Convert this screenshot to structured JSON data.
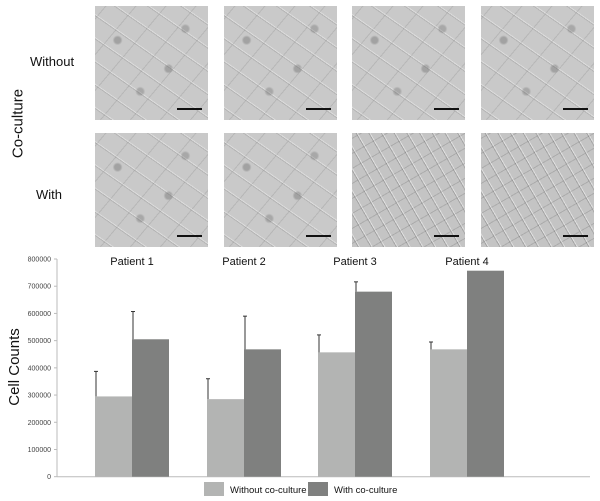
{
  "figure": {
    "group_label": "Co-culture",
    "row_labels": [
      "Without",
      "With"
    ],
    "panels": [
      {
        "row": "Without",
        "patient": "Patient 1"
      },
      {
        "row": "Without",
        "patient": "Patient 2"
      },
      {
        "row": "Without",
        "patient": "Patient 3"
      },
      {
        "row": "Without",
        "patient": "Patient 4"
      },
      {
        "row": "With",
        "patient": "Patient 1"
      },
      {
        "row": "With",
        "patient": "Patient 2"
      },
      {
        "row": "With",
        "patient": "Patient 3"
      },
      {
        "row": "With",
        "patient": "Patient 4"
      }
    ]
  },
  "chart_data": {
    "type": "bar",
    "title": "",
    "xlabel": "",
    "ylabel": "Cell Counts",
    "categories": [
      "Patient 1",
      "Patient 2",
      "Patient 3",
      "Patient 4"
    ],
    "ylim": [
      0,
      800000
    ],
    "yticks": [
      "0",
      "100000",
      "200000",
      "300000",
      "400000",
      "500000",
      "600000",
      "700000",
      "800000"
    ],
    "grid": false,
    "legend_position": "bottom",
    "series": [
      {
        "name": "Without co-culture",
        "color": "#b3b4b3",
        "values": [
          295000,
          285000,
          457000,
          468000
        ],
        "errors": [
          92000,
          75000,
          64000,
          27000
        ]
      },
      {
        "name": "With co-culture",
        "color": "#7f807f",
        "values": [
          505000,
          468000,
          680000,
          757000
        ],
        "errors": [
          102000,
          122000,
          36000,
          0
        ]
      }
    ]
  }
}
